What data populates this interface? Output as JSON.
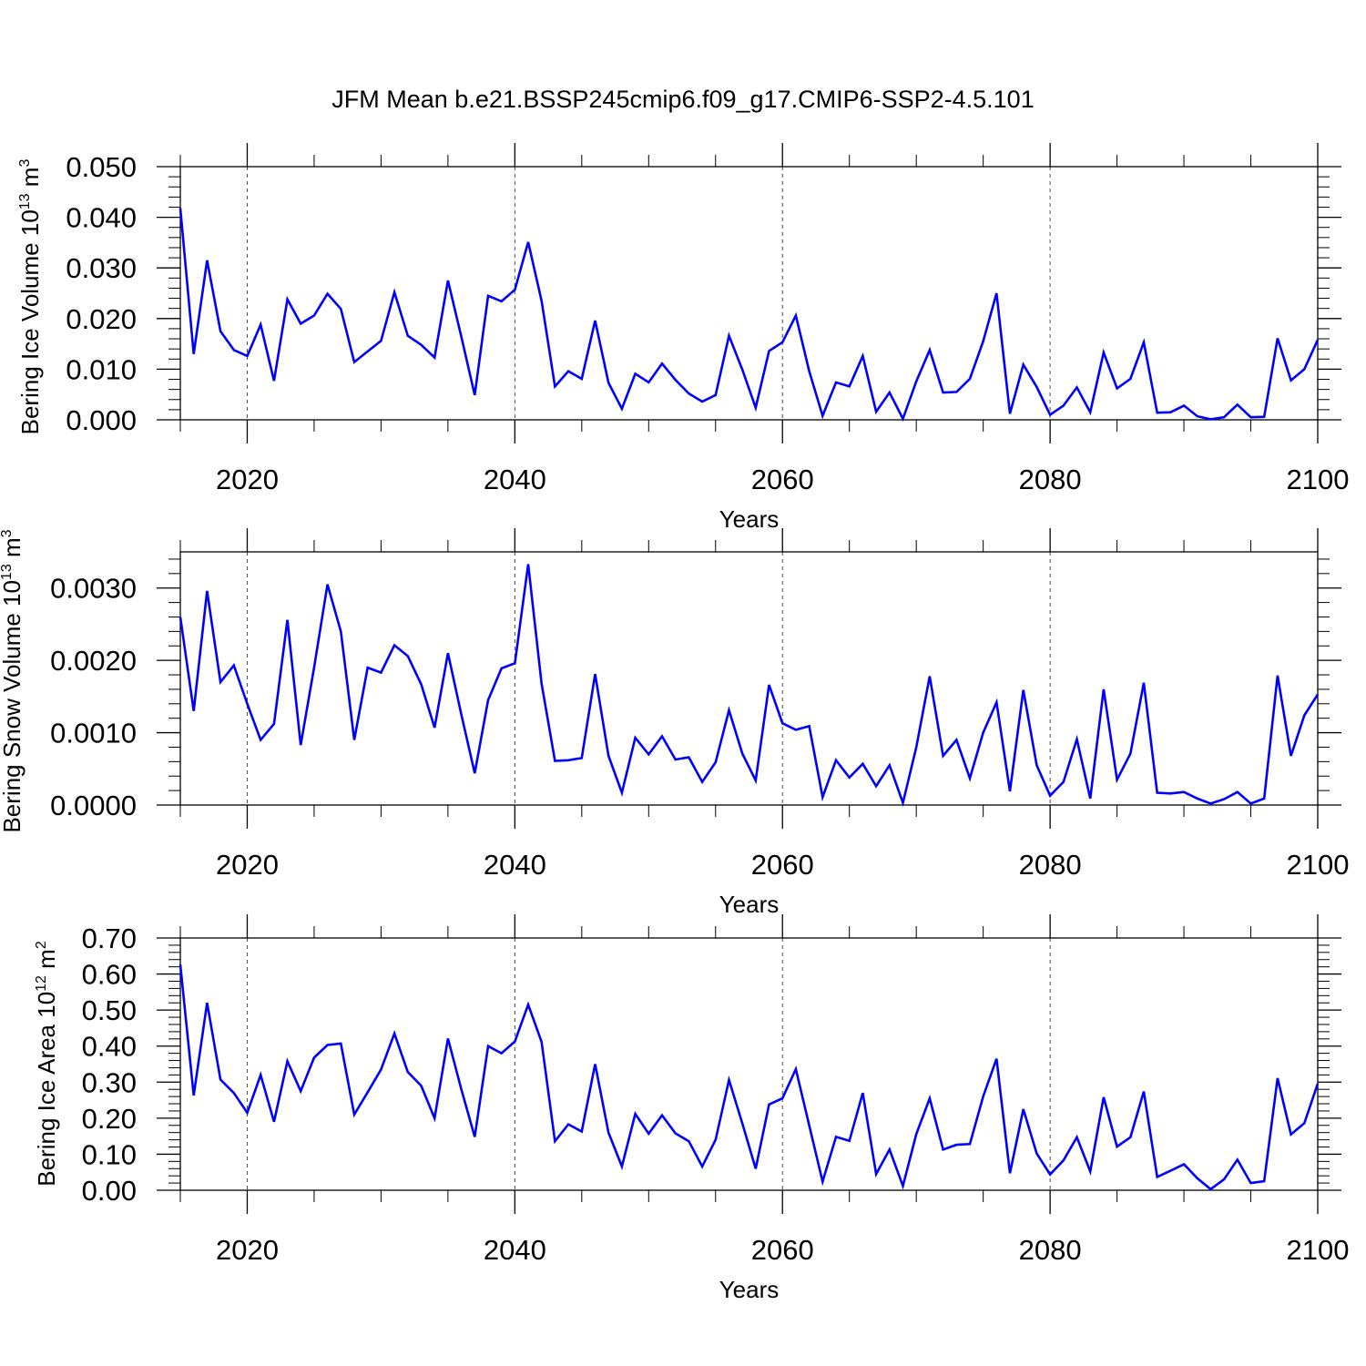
{
  "title": "JFM Mean b.e21.BSSP245cmip6.f09_g17.CMIP6-SSP2-4.5.101",
  "colors": {
    "line": "#0000ff",
    "axis": "#000000"
  },
  "chart_data": [
    {
      "type": "line",
      "ylabel_base": "Bering Ice Volume 10",
      "ylabel_exp": "13",
      "ylabel_unit": " m",
      "ylabel_unit_exp": "3",
      "xlabel": "Years",
      "xlim": [
        2015,
        2100
      ],
      "ylim": [
        0.0,
        0.05
      ],
      "yticks": [
        0.0,
        0.01,
        0.02,
        0.03,
        0.04,
        0.05
      ],
      "ytick_labels": [
        "0.000",
        "0.010",
        "0.020",
        "0.030",
        "0.040",
        "0.050"
      ],
      "xticks": [
        2020,
        2040,
        2060,
        2080,
        2100
      ],
      "xtick_labels": [
        "2020",
        "2040",
        "2060",
        "2080",
        "2100"
      ],
      "series": [
        {
          "name": "Bering Ice Volume",
          "x": [
            2015,
            2016,
            2017,
            2018,
            2019,
            2020,
            2021,
            2022,
            2023,
            2024,
            2025,
            2026,
            2027,
            2028,
            2029,
            2030,
            2031,
            2032,
            2033,
            2034,
            2035,
            2036,
            2037,
            2038,
            2039,
            2040,
            2041,
            2042,
            2043,
            2044,
            2045,
            2046,
            2047,
            2048,
            2049,
            2050,
            2051,
            2052,
            2053,
            2054,
            2055,
            2056,
            2057,
            2058,
            2059,
            2060,
            2061,
            2062,
            2063,
            2064,
            2065,
            2066,
            2067,
            2068,
            2069,
            2070,
            2071,
            2072,
            2073,
            2074,
            2075,
            2076,
            2077,
            2078,
            2079,
            2080,
            2081,
            2082,
            2083,
            2084,
            2085,
            2086,
            2087,
            2088,
            2089,
            2090,
            2091,
            2092,
            2093,
            2094,
            2095,
            2096,
            2097,
            2098,
            2099,
            2100
          ],
          "values": [
            0.0418,
            0.013,
            0.0315,
            0.0175,
            0.0138,
            0.0126,
            0.0188,
            0.0077,
            0.0238,
            0.019,
            0.0206,
            0.0249,
            0.0219,
            0.0114,
            0.0135,
            0.0156,
            0.0252,
            0.0166,
            0.0148,
            0.0123,
            0.0275,
            0.0164,
            0.0049,
            0.0245,
            0.0234,
            0.0257,
            0.0351,
            0.0235,
            0.0066,
            0.0096,
            0.0081,
            0.0196,
            0.0073,
            0.0022,
            0.0091,
            0.0074,
            0.0111,
            0.0079,
            0.0052,
            0.0036,
            0.0049,
            0.0166,
            0.0099,
            0.0024,
            0.0136,
            0.0153,
            0.0206,
            0.0096,
            0.0008,
            0.0074,
            0.0066,
            0.0126,
            0.0016,
            0.0054,
            0.0002,
            0.0076,
            0.0138,
            0.0054,
            0.0055,
            0.0081,
            0.0155,
            0.025,
            0.0012,
            0.0109,
            0.0065,
            0.001,
            0.0028,
            0.0064,
            0.0015,
            0.0133,
            0.0062,
            0.0081,
            0.0153,
            0.0014,
            0.0015,
            0.0028,
            0.0007,
            0.0001,
            0.0005,
            0.003,
            0.0005,
            0.0006,
            0.0161,
            0.0078,
            0.01,
            0.0158
          ]
        }
      ]
    },
    {
      "type": "line",
      "ylabel_base": "Bering Snow Volume 10",
      "ylabel_exp": "13",
      "ylabel_unit": " m",
      "ylabel_unit_exp": "3",
      "xlabel": "Years",
      "xlim": [
        2015,
        2100
      ],
      "ylim": [
        0.0,
        0.0035
      ],
      "yticks": [
        0.0,
        0.001,
        0.002,
        0.003
      ],
      "ytick_labels": [
        "0.0000",
        "0.0010",
        "0.0020",
        "0.0030"
      ],
      "xticks": [
        2020,
        2040,
        2060,
        2080,
        2100
      ],
      "xtick_labels": [
        "2020",
        "2040",
        "2060",
        "2080",
        "2100"
      ],
      "series": [
        {
          "name": "Bering Snow Volume",
          "x": [
            2015,
            2016,
            2017,
            2018,
            2019,
            2020,
            2021,
            2022,
            2023,
            2024,
            2025,
            2026,
            2027,
            2028,
            2029,
            2030,
            2031,
            2032,
            2033,
            2034,
            2035,
            2036,
            2037,
            2038,
            2039,
            2040,
            2041,
            2042,
            2043,
            2044,
            2045,
            2046,
            2047,
            2048,
            2049,
            2050,
            2051,
            2052,
            2053,
            2054,
            2055,
            2056,
            2057,
            2058,
            2059,
            2060,
            2061,
            2062,
            2063,
            2064,
            2065,
            2066,
            2067,
            2068,
            2069,
            2070,
            2071,
            2072,
            2073,
            2074,
            2075,
            2076,
            2077,
            2078,
            2079,
            2080,
            2081,
            2082,
            2083,
            2084,
            2085,
            2086,
            2087,
            2088,
            2089,
            2090,
            2091,
            2092,
            2093,
            2094,
            2095,
            2096,
            2097,
            2098,
            2099,
            2100
          ],
          "values": [
            0.0026,
            0.0013,
            0.00296,
            0.0017,
            0.00193,
            0.0014,
            0.0009,
            0.00112,
            0.00256,
            0.00083,
            0.0019,
            0.00305,
            0.0024,
            0.0009,
            0.0019,
            0.00183,
            0.00221,
            0.00206,
            0.00167,
            0.00107,
            0.0021,
            0.00125,
            0.00044,
            0.00145,
            0.00189,
            0.00196,
            0.00333,
            0.00168,
            0.00061,
            0.00062,
            0.00065,
            0.00181,
            0.00068,
            0.00017,
            0.00093,
            0.0007,
            0.00095,
            0.00063,
            0.00066,
            0.00032,
            0.00059,
            0.00131,
            0.00071,
            0.00034,
            0.00166,
            0.00113,
            0.00104,
            0.00109,
            0.00011,
            0.00062,
            0.00038,
            0.00057,
            0.00026,
            0.00055,
            3e-05,
            0.0008,
            0.00178,
            0.00068,
            0.0009,
            0.00037,
            0.001,
            0.00142,
            0.00019,
            0.00159,
            0.00055,
            0.00013,
            0.00032,
            0.00091,
            9e-05,
            0.0016,
            0.00035,
            0.00071,
            0.00169,
            0.00017,
            0.00016,
            0.00018,
            9e-05,
            2e-05,
            8e-05,
            0.00018,
            2e-05,
            9e-05,
            0.00179,
            0.00068,
            0.00124,
            0.00153
          ]
        }
      ]
    },
    {
      "type": "line",
      "ylabel_base": "Bering Ice Area 10",
      "ylabel_exp": "12",
      "ylabel_unit": " m",
      "ylabel_unit_exp": "2",
      "xlabel": "Years",
      "xlim": [
        2015,
        2100
      ],
      "ylim": [
        0.0,
        0.7
      ],
      "yticks": [
        0.0,
        0.1,
        0.2,
        0.3,
        0.4,
        0.5,
        0.6,
        0.7
      ],
      "ytick_labels": [
        "0.00",
        "0.10",
        "0.20",
        "0.30",
        "0.40",
        "0.50",
        "0.60",
        "0.70"
      ],
      "xticks": [
        2020,
        2040,
        2060,
        2080,
        2100
      ],
      "xtick_labels": [
        "2020",
        "2040",
        "2060",
        "2080",
        "2100"
      ],
      "series": [
        {
          "name": "Bering Ice Area",
          "x": [
            2015,
            2016,
            2017,
            2018,
            2019,
            2020,
            2021,
            2022,
            2023,
            2024,
            2025,
            2026,
            2027,
            2028,
            2029,
            2030,
            2031,
            2032,
            2033,
            2034,
            2035,
            2036,
            2037,
            2038,
            2039,
            2040,
            2041,
            2042,
            2043,
            2044,
            2045,
            2046,
            2047,
            2048,
            2049,
            2050,
            2051,
            2052,
            2053,
            2054,
            2055,
            2056,
            2057,
            2058,
            2059,
            2060,
            2061,
            2062,
            2063,
            2064,
            2065,
            2066,
            2067,
            2068,
            2069,
            2070,
            2071,
            2072,
            2073,
            2074,
            2075,
            2076,
            2077,
            2078,
            2079,
            2080,
            2081,
            2082,
            2083,
            2084,
            2085,
            2086,
            2087,
            2088,
            2089,
            2090,
            2091,
            2092,
            2093,
            2094,
            2095,
            2096,
            2097,
            2098,
            2099,
            2100
          ],
          "values": [
            0.626,
            0.263,
            0.52,
            0.307,
            0.27,
            0.215,
            0.32,
            0.19,
            0.358,
            0.275,
            0.368,
            0.403,
            0.407,
            0.21,
            0.272,
            0.335,
            0.435,
            0.328,
            0.29,
            0.2,
            0.421,
            0.28,
            0.148,
            0.4,
            0.38,
            0.413,
            0.515,
            0.412,
            0.136,
            0.183,
            0.163,
            0.35,
            0.16,
            0.066,
            0.212,
            0.157,
            0.208,
            0.158,
            0.136,
            0.066,
            0.14,
            0.306,
            0.185,
            0.06,
            0.238,
            0.255,
            0.336,
            0.18,
            0.024,
            0.148,
            0.137,
            0.27,
            0.045,
            0.113,
            0.012,
            0.156,
            0.255,
            0.113,
            0.126,
            0.128,
            0.26,
            0.365,
            0.047,
            0.225,
            0.102,
            0.044,
            0.083,
            0.147,
            0.052,
            0.258,
            0.121,
            0.147,
            0.274,
            0.037,
            0.054,
            0.072,
            0.033,
            0.003,
            0.03,
            0.085,
            0.02,
            0.025,
            0.311,
            0.155,
            0.186,
            0.296
          ]
        }
      ]
    }
  ]
}
